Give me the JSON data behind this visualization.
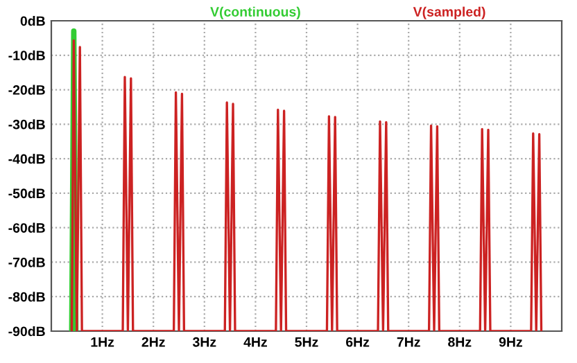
{
  "chart_data": {
    "type": "line",
    "legend": false,
    "grid": true,
    "line_style": "solid",
    "marker": "none",
    "xlim": [
      0,
      10
    ],
    "ylim": [
      -90,
      0
    ],
    "xticks": [
      {
        "value": 1,
        "label": "1Hz"
      },
      {
        "value": 2,
        "label": "2Hz"
      },
      {
        "value": 3,
        "label": "3Hz"
      },
      {
        "value": 4,
        "label": "4Hz"
      },
      {
        "value": 5,
        "label": "5Hz"
      },
      {
        "value": 6,
        "label": "6Hz"
      },
      {
        "value": 7,
        "label": "7Hz"
      },
      {
        "value": 8,
        "label": "8Hz"
      },
      {
        "value": 9,
        "label": "9Hz"
      }
    ],
    "yticks": [
      {
        "value": 0,
        "label": "0dB"
      },
      {
        "value": -10,
        "label": "-10dB"
      },
      {
        "value": -20,
        "label": "-20dB"
      },
      {
        "value": -30,
        "label": "-30dB"
      },
      {
        "value": -40,
        "label": "-40dB"
      },
      {
        "value": -50,
        "label": "-50dB"
      },
      {
        "value": -60,
        "label": "-60dB"
      },
      {
        "value": -70,
        "label": "-70dB"
      },
      {
        "value": -80,
        "label": "-80dB"
      },
      {
        "value": -90,
        "label": "-90dB"
      }
    ],
    "series": [
      {
        "name": "V(continuous)",
        "color": "#33cc33",
        "x": [
          0.4,
          0.44,
          0.48
        ],
        "values": [
          -90,
          -3,
          -90
        ]
      },
      {
        "name": "V(sampled)",
        "color": "#cc2222",
        "x": [
          0.4,
          0.44,
          0.5,
          0.56,
          0.6,
          1.4,
          1.44,
          1.5,
          1.56,
          1.6,
          2.4,
          2.44,
          2.5,
          2.56,
          2.6,
          3.4,
          3.44,
          3.5,
          3.56,
          3.6,
          4.4,
          4.44,
          4.5,
          4.56,
          4.6,
          5.4,
          5.44,
          5.5,
          5.56,
          5.6,
          6.4,
          6.44,
          6.5,
          6.56,
          6.6,
          7.4,
          7.44,
          7.5,
          7.56,
          7.6,
          8.4,
          8.44,
          8.5,
          8.56,
          8.6,
          9.4,
          9.44,
          9.5,
          9.56,
          9.6
        ],
        "values": [
          -90,
          -5.7,
          -90,
          -7.6,
          -90,
          -90,
          -16.3,
          -90,
          -16.7,
          -90,
          -90,
          -20.8,
          -90,
          -21.2,
          -90,
          -90,
          -23.7,
          -90,
          -24.1,
          -90,
          -90,
          -25.8,
          -90,
          -26.1,
          -90,
          -90,
          -27.7,
          -90,
          -27.9,
          -90,
          -90,
          -29.2,
          -90,
          -29.4,
          -90,
          -90,
          -30.4,
          -90,
          -30.6,
          -90,
          -90,
          -31.4,
          -90,
          -31.6,
          -90,
          -90,
          -32.7,
          -90,
          -32.9,
          -90
        ]
      }
    ]
  }
}
